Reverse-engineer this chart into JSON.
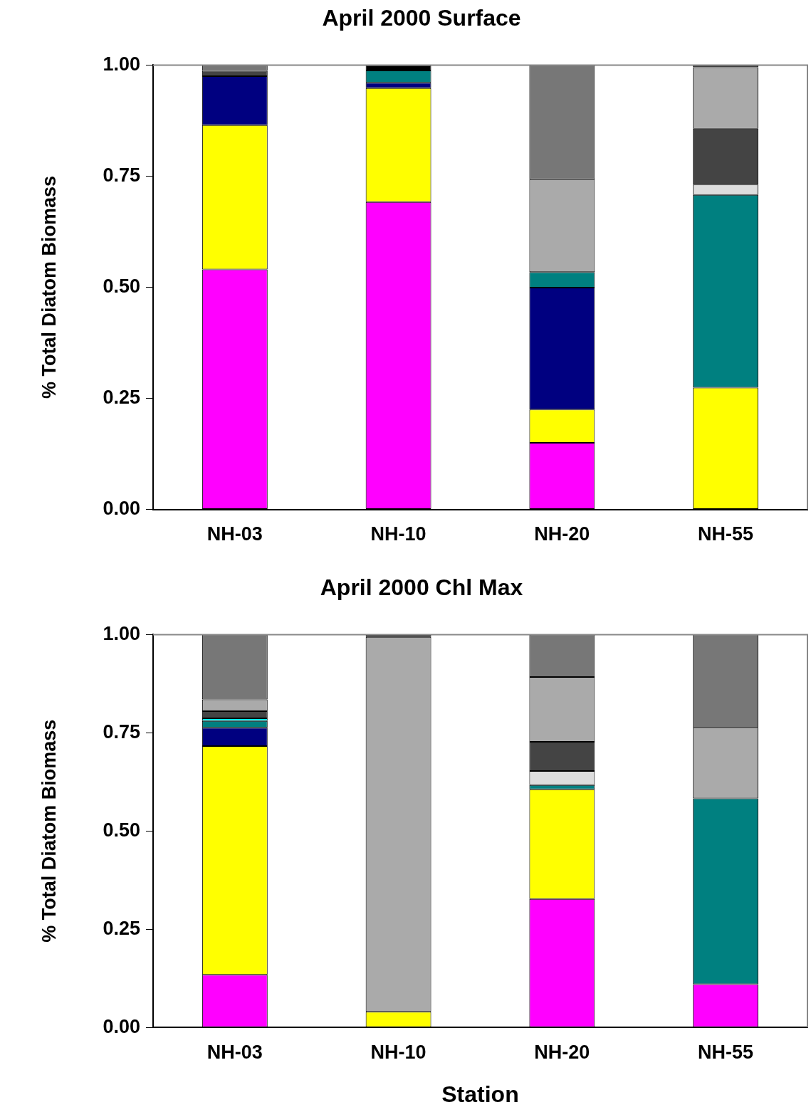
{
  "chart_data": [
    {
      "type": "bar",
      "title": "April 2000 Surface",
      "ylabel": "% Total Diatom Biomass",
      "categories": [
        "NH-03",
        "NH-10",
        "NH-20",
        "NH-55"
      ],
      "stacked": true,
      "legend": false,
      "grid": false,
      "ylim": [
        0,
        1
      ],
      "yticks": [
        {
          "value": 0,
          "label": "0.00"
        },
        {
          "value": 0.25,
          "label": "0.25"
        },
        {
          "value": 0.5,
          "label": "0.50"
        },
        {
          "value": 0.75,
          "label": "0.75"
        },
        {
          "value": 1,
          "label": "1.00"
        }
      ],
      "series": [
        {
          "color": "#ff00ff",
          "values": [
            0.54,
            0.692,
            0.15,
            0
          ]
        },
        {
          "color": "#ffff00",
          "values": [
            0.325,
            0.256,
            0.075,
            0.274
          ]
        },
        {
          "color": "#000080",
          "values": [
            0.11,
            0.012,
            0.274,
            0
          ]
        },
        {
          "color": "#008080",
          "values": [
            0,
            0.028,
            0.035,
            0.434
          ]
        },
        {
          "color": "#00ffff",
          "values": [
            0,
            0,
            0,
            0
          ]
        },
        {
          "color": "#dddddd",
          "values": [
            0,
            0,
            0,
            0.023
          ]
        },
        {
          "color": "#444444",
          "values": [
            0.012,
            0,
            0,
            0.126
          ]
        },
        {
          "color": "#aaaaaa",
          "values": [
            0,
            0,
            0.209,
            0.138
          ]
        },
        {
          "color": "#777777",
          "values": [
            0.013,
            0,
            0.257,
            0
          ]
        },
        {
          "color": "#000000",
          "values": [
            0,
            0.012,
            0,
            0.005
          ]
        }
      ]
    },
    {
      "type": "bar",
      "title": "April 2000 Chl Max",
      "ylabel": "% Total Diatom Biomass",
      "xlabel": "Station",
      "categories": [
        "NH-03",
        "NH-10",
        "NH-20",
        "NH-55"
      ],
      "stacked": true,
      "legend": false,
      "grid": false,
      "ylim": [
        0,
        1
      ],
      "yticks": [
        {
          "value": 0,
          "label": "0.00"
        },
        {
          "value": 0.25,
          "label": "0.25"
        },
        {
          "value": 0.5,
          "label": "0.50"
        },
        {
          "value": 0.75,
          "label": "0.75"
        },
        {
          "value": 1,
          "label": "1.00"
        }
      ],
      "series": [
        {
          "color": "#ff00ff",
          "values": [
            0.134,
            0,
            0.327,
            0.11
          ]
        },
        {
          "color": "#ffff00",
          "values": [
            0.582,
            0.04,
            0.279,
            0
          ]
        },
        {
          "color": "#000080",
          "values": [
            0.047,
            0,
            0,
            0
          ]
        },
        {
          "color": "#008080",
          "values": [
            0.017,
            0,
            0.011,
            0.473
          ]
        },
        {
          "color": "#00ffff",
          "values": [
            0.007,
            0,
            0,
            0
          ]
        },
        {
          "color": "#dddddd",
          "values": [
            0,
            0,
            0.036,
            0
          ]
        },
        {
          "color": "#444444",
          "values": [
            0.018,
            0,
            0.074,
            0
          ]
        },
        {
          "color": "#aaaaaa",
          "values": [
            0.03,
            0.954,
            0.165,
            0.18
          ]
        },
        {
          "color": "#777777",
          "values": [
            0.165,
            0,
            0.108,
            0.237
          ]
        },
        {
          "color": "#000000",
          "values": [
            0,
            0.006,
            0,
            0
          ]
        }
      ]
    }
  ]
}
